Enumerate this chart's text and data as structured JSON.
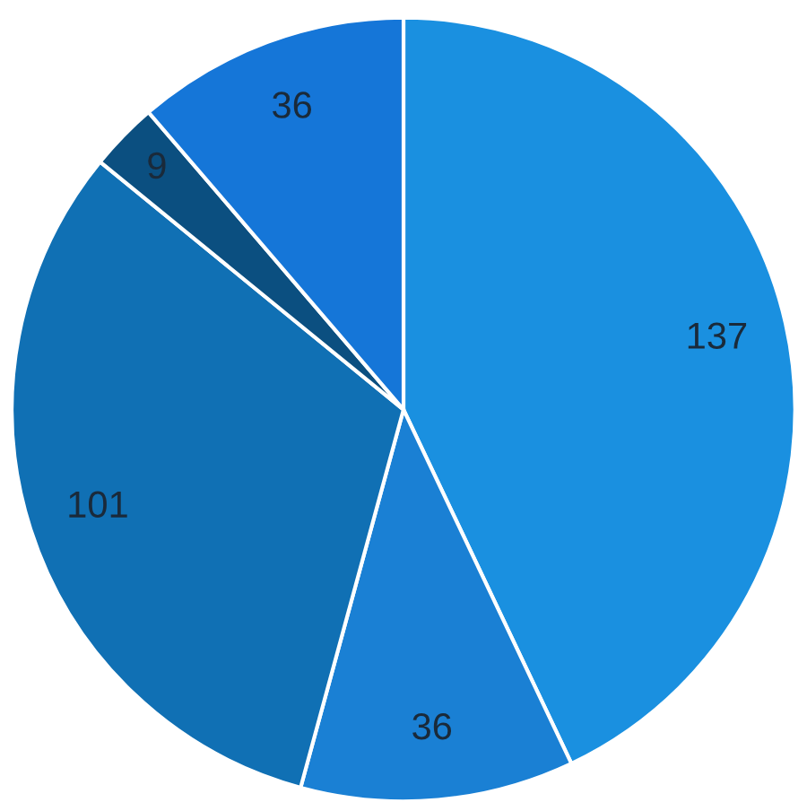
{
  "chart_data": {
    "type": "pie",
    "categories": [
      null,
      null,
      null,
      null,
      null
    ],
    "values": [
      137,
      36,
      101,
      9,
      36
    ],
    "colors": [
      "#1a90e0",
      "#1a80d4",
      "#1070b4",
      "#0b4f80",
      "#1576d8"
    ],
    "data_labels": true
  }
}
